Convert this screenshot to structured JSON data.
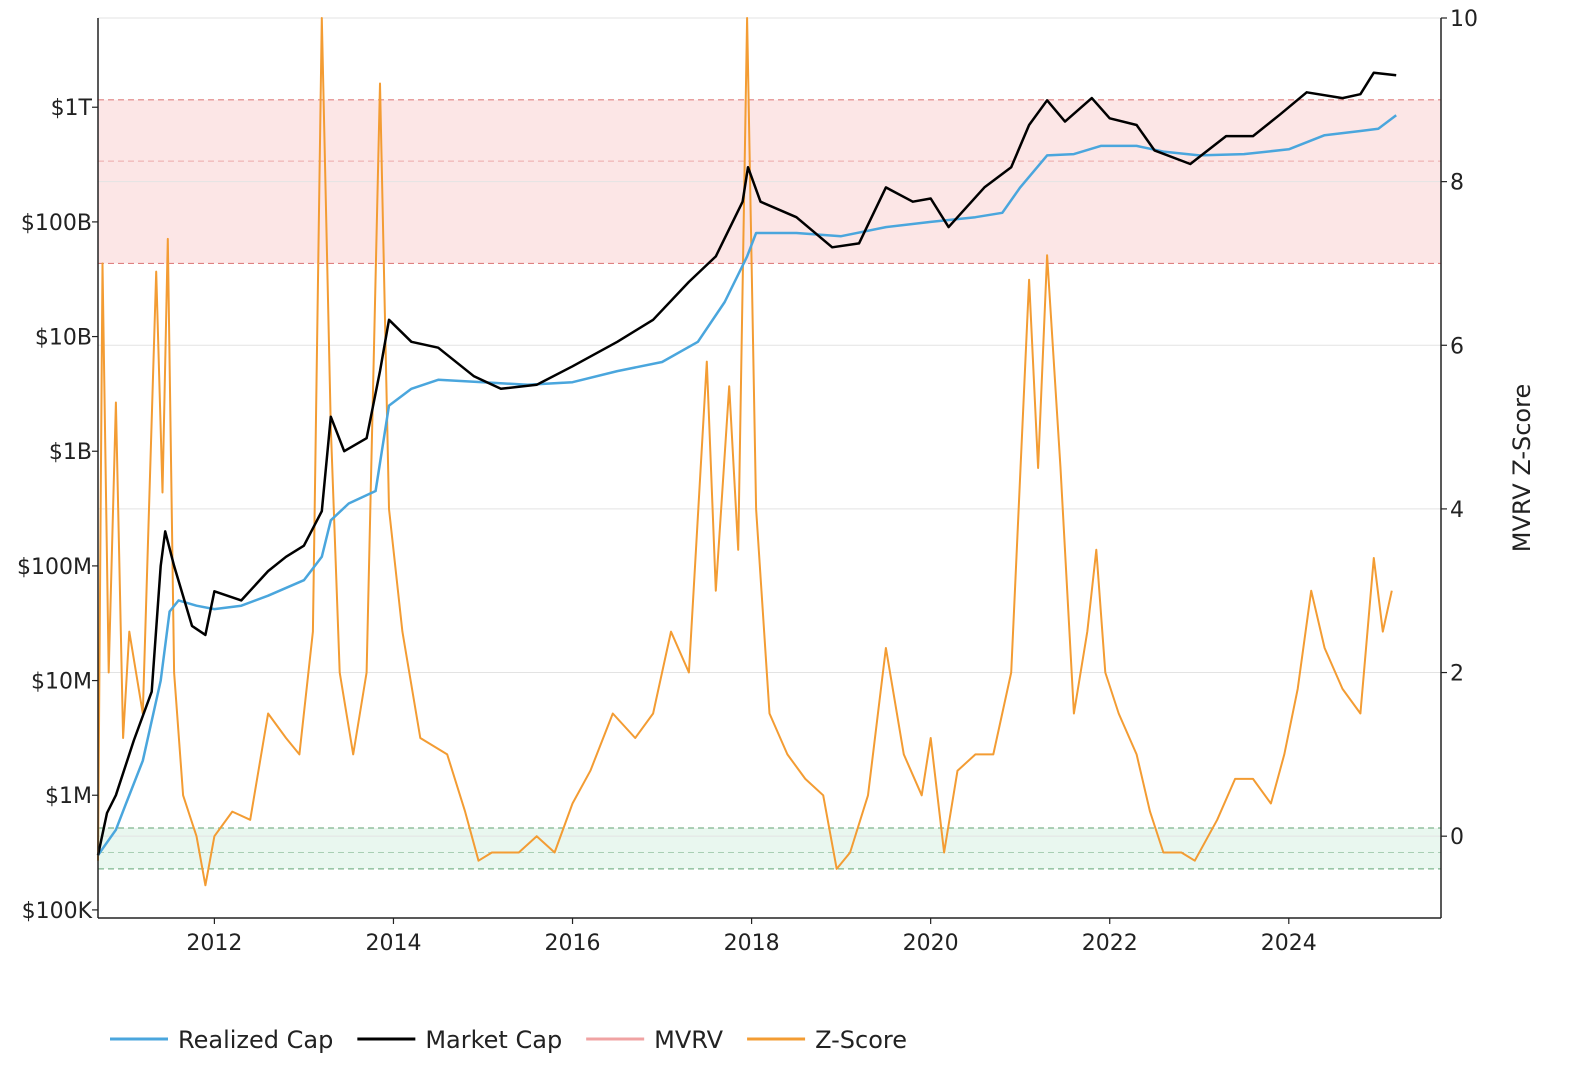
{
  "chart_data": {
    "type": "line",
    "title": "",
    "xlabel": "",
    "ylabel_left": "",
    "ylabel_right": "MVRV Z-Score",
    "x_range": [
      2010.7,
      2025.7
    ],
    "x_ticks": [
      {
        "value": 2012,
        "label": "2012"
      },
      {
        "value": 2014,
        "label": "2014"
      },
      {
        "value": 2016,
        "label": "2016"
      },
      {
        "value": 2018,
        "label": "2018"
      },
      {
        "value": 2020,
        "label": "2020"
      },
      {
        "value": 2022,
        "label": "2022"
      },
      {
        "value": 2024,
        "label": "2024"
      }
    ],
    "y_left": {
      "scale": "log",
      "range_usd": [
        85000,
        6000000000000
      ],
      "ticks": [
        {
          "value": 100000,
          "label": "$100K"
        },
        {
          "value": 1000000,
          "label": "$1M"
        },
        {
          "value": 10000000,
          "label": "$10M"
        },
        {
          "value": 100000000,
          "label": "$100M"
        },
        {
          "value": 1000000000,
          "label": "$1B"
        },
        {
          "value": 10000000000,
          "label": "$10B"
        },
        {
          "value": 100000000000,
          "label": "$100B"
        },
        {
          "value": 1000000000000,
          "label": "$1T"
        }
      ]
    },
    "y_right": {
      "scale": "linear",
      "range": [
        -1.0,
        10.0
      ],
      "ticks": [
        {
          "value": 0,
          "label": "0"
        },
        {
          "value": 2,
          "label": "2"
        },
        {
          "value": 4,
          "label": "4"
        },
        {
          "value": 6,
          "label": "6"
        },
        {
          "value": 8,
          "label": "8"
        },
        {
          "value": 10,
          "label": "10"
        }
      ]
    },
    "zones": [
      {
        "name": "overvalued",
        "axis": "right",
        "from": 7.0,
        "to": 9.0,
        "fill": "#fce6e6",
        "line": "#e08080",
        "mid_line": 8.25
      },
      {
        "name": "undervalued",
        "axis": "right",
        "from": -0.4,
        "to": 0.1,
        "fill": "#e9f7ef",
        "line": "#7fb58e",
        "mid_line": -0.2
      }
    ],
    "series": [
      {
        "name": "Realized Cap",
        "axis": "left",
        "color": "#4aa6dd",
        "points": [
          [
            2010.7,
            300000
          ],
          [
            2010.9,
            500000
          ],
          [
            2011.0,
            800000
          ],
          [
            2011.2,
            2000000
          ],
          [
            2011.4,
            10000000
          ],
          [
            2011.5,
            40000000
          ],
          [
            2011.6,
            50000000
          ],
          [
            2011.8,
            45000000
          ],
          [
            2012.0,
            42000000
          ],
          [
            2012.3,
            45000000
          ],
          [
            2012.6,
            55000000
          ],
          [
            2013.0,
            75000000
          ],
          [
            2013.2,
            120000000
          ],
          [
            2013.3,
            250000000
          ],
          [
            2013.5,
            350000000
          ],
          [
            2013.8,
            450000000
          ],
          [
            2013.95,
            2500000000
          ],
          [
            2014.2,
            3500000000
          ],
          [
            2014.5,
            4200000000
          ],
          [
            2015.0,
            4000000000
          ],
          [
            2015.5,
            3800000000
          ],
          [
            2016.0,
            4000000000
          ],
          [
            2016.5,
            5000000000
          ],
          [
            2017.0,
            6000000000
          ],
          [
            2017.4,
            9000000000
          ],
          [
            2017.7,
            20000000000
          ],
          [
            2017.95,
            50000000000
          ],
          [
            2018.05,
            80000000000
          ],
          [
            2018.5,
            80000000000
          ],
          [
            2019.0,
            75000000000
          ],
          [
            2019.5,
            90000000000
          ],
          [
            2020.0,
            100000000000
          ],
          [
            2020.5,
            110000000000
          ],
          [
            2020.8,
            120000000000
          ],
          [
            2021.0,
            200000000000
          ],
          [
            2021.3,
            380000000000
          ],
          [
            2021.6,
            390000000000
          ],
          [
            2021.9,
            460000000000
          ],
          [
            2022.3,
            460000000000
          ],
          [
            2022.6,
            410000000000
          ],
          [
            2023.0,
            380000000000
          ],
          [
            2023.5,
            390000000000
          ],
          [
            2024.0,
            430000000000
          ],
          [
            2024.4,
            570000000000
          ],
          [
            2024.8,
            620000000000
          ],
          [
            2025.0,
            650000000000
          ],
          [
            2025.2,
            850000000000
          ]
        ]
      },
      {
        "name": "Market Cap",
        "axis": "left",
        "color": "#000000",
        "points": [
          [
            2010.7,
            300000
          ],
          [
            2010.8,
            700000
          ],
          [
            2010.9,
            1000000
          ],
          [
            2011.1,
            3000000
          ],
          [
            2011.3,
            8000000
          ],
          [
            2011.4,
            100000000
          ],
          [
            2011.45,
            200000000
          ],
          [
            2011.55,
            100000000
          ],
          [
            2011.75,
            30000000
          ],
          [
            2011.9,
            25000000
          ],
          [
            2012.0,
            60000000
          ],
          [
            2012.3,
            50000000
          ],
          [
            2012.6,
            90000000
          ],
          [
            2012.8,
            120000000
          ],
          [
            2013.0,
            150000000
          ],
          [
            2013.2,
            300000000
          ],
          [
            2013.3,
            2000000000
          ],
          [
            2013.45,
            1000000000
          ],
          [
            2013.7,
            1300000000
          ],
          [
            2013.85,
            5000000000
          ],
          [
            2013.95,
            14000000000
          ],
          [
            2014.2,
            9000000000
          ],
          [
            2014.5,
            8000000000
          ],
          [
            2014.9,
            4500000000
          ],
          [
            2015.2,
            3500000000
          ],
          [
            2015.6,
            3800000000
          ],
          [
            2016.0,
            5500000000
          ],
          [
            2016.5,
            9000000000
          ],
          [
            2016.9,
            14000000000
          ],
          [
            2017.3,
            30000000000
          ],
          [
            2017.6,
            50000000000
          ],
          [
            2017.9,
            150000000000
          ],
          [
            2017.96,
            300000000000
          ],
          [
            2018.1,
            150000000000
          ],
          [
            2018.5,
            110000000000
          ],
          [
            2018.9,
            60000000000
          ],
          [
            2019.2,
            65000000000
          ],
          [
            2019.5,
            200000000000
          ],
          [
            2019.8,
            150000000000
          ],
          [
            2020.0,
            160000000000
          ],
          [
            2020.2,
            90000000000
          ],
          [
            2020.6,
            200000000000
          ],
          [
            2020.9,
            300000000000
          ],
          [
            2021.1,
            700000000000
          ],
          [
            2021.3,
            1150000000000
          ],
          [
            2021.5,
            750000000000
          ],
          [
            2021.8,
            1200000000000
          ],
          [
            2022.0,
            800000000000
          ],
          [
            2022.3,
            700000000000
          ],
          [
            2022.5,
            420000000000
          ],
          [
            2022.9,
            320000000000
          ],
          [
            2023.3,
            560000000000
          ],
          [
            2023.6,
            560000000000
          ],
          [
            2023.9,
            860000000000
          ],
          [
            2024.2,
            1350000000000
          ],
          [
            2024.6,
            1200000000000
          ],
          [
            2024.8,
            1300000000000
          ],
          [
            2024.95,
            2000000000000
          ],
          [
            2025.2,
            1900000000000
          ]
        ]
      },
      {
        "name": "MVRV",
        "axis": "left",
        "color": "#f0a3a3",
        "legend_only": true,
        "points": []
      },
      {
        "name": "Z-Score",
        "axis": "right",
        "color": "#f39c33",
        "points": [
          [
            2010.7,
            -0.3
          ],
          [
            2010.75,
            7.0
          ],
          [
            2010.82,
            2.0
          ],
          [
            2010.9,
            5.3
          ],
          [
            2010.98,
            1.2
          ],
          [
            2011.05,
            2.5
          ],
          [
            2011.2,
            1.5
          ],
          [
            2011.35,
            6.9
          ],
          [
            2011.42,
            4.2
          ],
          [
            2011.48,
            7.3
          ],
          [
            2011.55,
            2.0
          ],
          [
            2011.65,
            0.5
          ],
          [
            2011.8,
            0.0
          ],
          [
            2011.9,
            -0.6
          ],
          [
            2012.0,
            0.0
          ],
          [
            2012.2,
            0.3
          ],
          [
            2012.4,
            0.2
          ],
          [
            2012.6,
            1.5
          ],
          [
            2012.8,
            1.2
          ],
          [
            2012.95,
            1.0
          ],
          [
            2013.1,
            2.5
          ],
          [
            2013.2,
            10.0
          ],
          [
            2013.3,
            5.0
          ],
          [
            2013.4,
            2.0
          ],
          [
            2013.55,
            1.0
          ],
          [
            2013.7,
            2.0
          ],
          [
            2013.85,
            9.2
          ],
          [
            2013.95,
            4.0
          ],
          [
            2014.1,
            2.5
          ],
          [
            2014.3,
            1.2
          ],
          [
            2014.6,
            1.0
          ],
          [
            2014.8,
            0.3
          ],
          [
            2014.95,
            -0.3
          ],
          [
            2015.1,
            -0.2
          ],
          [
            2015.4,
            -0.2
          ],
          [
            2015.6,
            0.0
          ],
          [
            2015.8,
            -0.2
          ],
          [
            2016.0,
            0.4
          ],
          [
            2016.2,
            0.8
          ],
          [
            2016.45,
            1.5
          ],
          [
            2016.7,
            1.2
          ],
          [
            2016.9,
            1.5
          ],
          [
            2017.1,
            2.5
          ],
          [
            2017.3,
            2.0
          ],
          [
            2017.5,
            5.8
          ],
          [
            2017.6,
            3.0
          ],
          [
            2017.75,
            5.5
          ],
          [
            2017.85,
            3.5
          ],
          [
            2017.95,
            10.0
          ],
          [
            2018.05,
            4.0
          ],
          [
            2018.2,
            1.5
          ],
          [
            2018.4,
            1.0
          ],
          [
            2018.6,
            0.7
          ],
          [
            2018.8,
            0.5
          ],
          [
            2018.95,
            -0.4
          ],
          [
            2019.1,
            -0.2
          ],
          [
            2019.3,
            0.5
          ],
          [
            2019.5,
            2.3
          ],
          [
            2019.7,
            1.0
          ],
          [
            2019.9,
            0.5
          ],
          [
            2020.0,
            1.2
          ],
          [
            2020.15,
            -0.2
          ],
          [
            2020.3,
            0.8
          ],
          [
            2020.5,
            1.0
          ],
          [
            2020.7,
            1.0
          ],
          [
            2020.9,
            2.0
          ],
          [
            2021.1,
            6.8
          ],
          [
            2021.2,
            4.5
          ],
          [
            2021.3,
            7.1
          ],
          [
            2021.45,
            4.5
          ],
          [
            2021.6,
            1.5
          ],
          [
            2021.75,
            2.5
          ],
          [
            2021.85,
            3.5
          ],
          [
            2021.95,
            2.0
          ],
          [
            2022.1,
            1.5
          ],
          [
            2022.3,
            1.0
          ],
          [
            2022.45,
            0.3
          ],
          [
            2022.6,
            -0.2
          ],
          [
            2022.8,
            -0.2
          ],
          [
            2022.95,
            -0.3
          ],
          [
            2023.2,
            0.2
          ],
          [
            2023.4,
            0.7
          ],
          [
            2023.6,
            0.7
          ],
          [
            2023.8,
            0.4
          ],
          [
            2023.95,
            1.0
          ],
          [
            2024.1,
            1.8
          ],
          [
            2024.25,
            3.0
          ],
          [
            2024.4,
            2.3
          ],
          [
            2024.6,
            1.8
          ],
          [
            2024.8,
            1.5
          ],
          [
            2024.95,
            3.4
          ],
          [
            2025.05,
            2.5
          ],
          [
            2025.15,
            3.0
          ]
        ]
      }
    ],
    "legend": {
      "position": "bottom-left",
      "items": [
        {
          "label": "Realized Cap",
          "color": "#4aa6dd",
          "text_color": "#222222"
        },
        {
          "label": "Market Cap",
          "color": "#000000",
          "text_color": "#222222"
        },
        {
          "label": "MVRV",
          "color": "#f0a3a3",
          "text_color": "#888888"
        },
        {
          "label": "Z-Score",
          "color": "#f39c33",
          "text_color": "#222222"
        }
      ]
    }
  }
}
